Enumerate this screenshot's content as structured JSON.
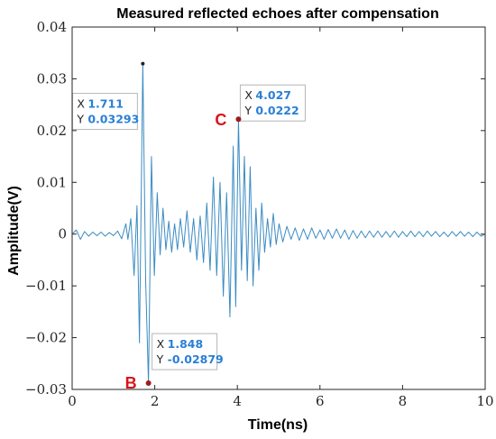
{
  "chart_data": {
    "type": "line",
    "title": "Measured reflected echoes after compensation",
    "xlabel": "Time(ns)",
    "ylabel": "Amplitude(V)",
    "xlim": [
      0,
      10
    ],
    "ylim": [
      -0.03,
      0.04
    ],
    "xticks": [
      0,
      2,
      4,
      6,
      8,
      10
    ],
    "yticks": [
      -0.03,
      -0.02,
      -0.01,
      0,
      0.01,
      0.02,
      0.03,
      0.04
    ],
    "xtick_labels": [
      "0",
      "2",
      "4",
      "6",
      "8",
      "10"
    ],
    "ytick_labels": [
      "−0.03",
      "−0.02",
      "−0.01",
      "0",
      "0.01",
      "0.02",
      "0.03",
      "0.04"
    ],
    "grid": false,
    "line_color": "#3b8bc2",
    "series": [
      {
        "x": [
          0,
          0.1,
          0.2,
          0.3,
          0.4,
          0.5,
          0.6,
          0.7,
          0.8,
          0.9,
          1.0,
          1.1,
          1.2,
          1.3,
          1.35,
          1.42,
          1.5,
          1.57,
          1.63,
          1.711,
          1.78,
          1.848,
          1.92,
          1.99,
          2.06,
          2.13,
          2.2,
          2.27,
          2.34,
          2.41,
          2.48,
          2.55,
          2.62,
          2.7,
          2.78,
          2.86,
          2.94,
          3.02,
          3.1,
          3.18,
          3.26,
          3.34,
          3.42,
          3.5,
          3.58,
          3.66,
          3.74,
          3.82,
          3.9,
          3.96,
          4.027,
          4.1,
          4.17,
          4.24,
          4.31,
          4.38,
          4.45,
          4.52,
          4.59,
          4.66,
          4.73,
          4.8,
          4.87,
          4.94,
          5.01,
          5.1,
          5.2,
          5.3,
          5.4,
          5.5,
          5.6,
          5.7,
          5.8,
          5.9,
          6.0,
          6.1,
          6.2,
          6.3,
          6.4,
          6.5,
          6.6,
          6.7,
          6.8,
          6.9,
          7.0,
          7.1,
          7.2,
          7.3,
          7.4,
          7.5,
          7.6,
          7.7,
          7.8,
          7.9,
          8.0,
          8.1,
          8.2,
          8.3,
          8.4,
          8.5,
          8.6,
          8.7,
          8.8,
          8.9,
          9.0,
          9.1,
          9.2,
          9.3,
          9.4,
          9.5,
          9.6,
          9.7,
          9.8,
          9.9,
          10.0
        ],
        "y": [
          0,
          0.0008,
          -0.001,
          0.0005,
          -0.0004,
          0.0004,
          -0.0003,
          0.0004,
          -0.0004,
          0.0003,
          -0.0003,
          0.0006,
          -0.0009,
          0.002,
          -0.001,
          0.003,
          -0.008,
          0.0055,
          -0.021,
          0.03293,
          -0.009,
          -0.02879,
          0.015,
          -0.008,
          0.008,
          -0.004,
          0.005,
          -0.003,
          0.0025,
          -0.0035,
          0.002,
          -0.003,
          0.003,
          -0.0025,
          0.0045,
          -0.0035,
          0.003,
          -0.005,
          0.0035,
          -0.0055,
          0.006,
          -0.007,
          0.011,
          -0.008,
          0.01,
          -0.012,
          0.008,
          -0.016,
          0.017,
          -0.014,
          0.0222,
          -0.007,
          0.015,
          -0.009,
          0.013,
          -0.01,
          0.005,
          -0.007,
          0.006,
          -0.0035,
          0.003,
          -0.0025,
          0.004,
          -0.002,
          0.002,
          -0.0015,
          0.0015,
          -0.001,
          0.0012,
          -0.0012,
          0.001,
          -0.001,
          0.0012,
          -0.0008,
          0.0008,
          -0.001,
          0.0009,
          -0.0008,
          0.001,
          -0.0008,
          0.0008,
          -0.001,
          0.0007,
          -0.0008,
          0.0006,
          -0.0007,
          0.0006,
          -0.0006,
          0.0006,
          -0.0006,
          0.0005,
          -0.0006,
          0.0006,
          -0.0006,
          0.0005,
          -0.0005,
          0.0006,
          -0.0005,
          0.0005,
          -0.0005,
          0.0006,
          -0.0004,
          0.0005,
          -0.0005,
          0.0004,
          -0.0005,
          0.0005,
          -0.0004,
          0.0005,
          -0.0004,
          0.0004,
          -0.0005,
          0.0004,
          -0.0004,
          0
        ]
      }
    ],
    "datatips": [
      {
        "id": "peak",
        "x": 1.711,
        "y": 0.03293,
        "x_label": "X",
        "y_label": "Y",
        "x_text": "1.711",
        "y_text": "0.03293",
        "marker_color": "#222222",
        "tag": ""
      },
      {
        "id": "B",
        "x": 1.848,
        "y": -0.02879,
        "x_label": "X",
        "y_label": "Y",
        "x_text": "1.848",
        "y_text": "-0.02879",
        "marker_color": "#a01b1b",
        "tag": "B"
      },
      {
        "id": "C",
        "x": 4.027,
        "y": 0.0222,
        "x_label": "X",
        "y_label": "Y",
        "x_text": "4.027",
        "y_text": "0.0222",
        "marker_color": "#a01b1b",
        "tag": "C"
      }
    ],
    "annotation_color": "#d9141c",
    "datatip_value_color": "#2a7fd6"
  }
}
